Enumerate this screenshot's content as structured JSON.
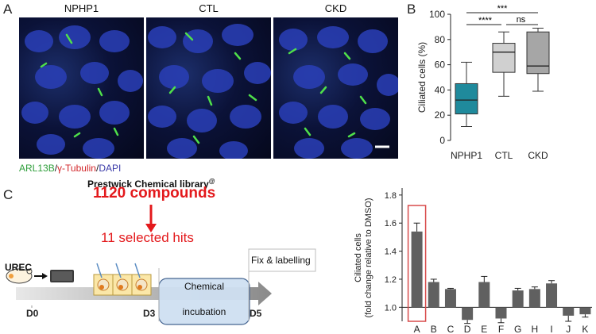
{
  "panelA": {
    "letter": "A",
    "images": [
      {
        "title": "NPHP1"
      },
      {
        "title": "CTL"
      },
      {
        "title": "CKD"
      }
    ],
    "stain": {
      "arl13b": "ARL13B",
      "sep1": "/",
      "tubulin": "γ-Tubulin",
      "sep2": "/",
      "dapi": "DAPI"
    }
  },
  "panelB": {
    "letter": "B",
    "significance": {
      "top": "***",
      "left": "****",
      "right": "ns"
    }
  },
  "panelC": {
    "letter": "C",
    "library": "Prestwick Chemical library",
    "library_mark": "@",
    "compounds": "1120 compounds",
    "hits": "11 selected hits",
    "urec": "UREC",
    "fix": "Fix & labelling",
    "chem1": "Chemical",
    "chem2": "incubation",
    "d0": "D0",
    "d3": "D3",
    "d5": "D5"
  },
  "colors": {
    "nphp1": "#1f8a9c",
    "ctl": "#d0d0d0",
    "ckd": "#a6a6a6",
    "bar": "#606060",
    "highlight": "#d84b4b",
    "red": "#e3191c"
  },
  "chart_data": [
    {
      "type": "box",
      "ylabel": "Ciliated cells (%)",
      "ylim": [
        0,
        100
      ],
      "yticks": [
        "0",
        "20",
        "40",
        "60",
        "80",
        "100"
      ],
      "categories": [
        "NPHP1",
        "CTL",
        "CKD"
      ],
      "boxes": [
        {
          "name": "NPHP1",
          "min": 11,
          "q1": 21,
          "median": 32,
          "q3": 45,
          "max": 62
        },
        {
          "name": "CTL",
          "min": 35,
          "q1": 54,
          "median": 70,
          "q3": 77,
          "max": 86
        },
        {
          "name": "CKD",
          "min": 39,
          "q1": 53,
          "median": 59,
          "q3": 86,
          "max": 89
        }
      ],
      "grid": false
    },
    {
      "type": "bar",
      "ylabel": "Ciliated cells\n(fold change relative to DMSO)",
      "ylim": [
        0.9,
        1.85
      ],
      "yticks": [
        "1.0",
        "1.2",
        "1.4",
        "1.6",
        "1.8"
      ],
      "categories": [
        "A",
        "B",
        "C",
        "D",
        "E",
        "F",
        "G",
        "H",
        "I",
        "J",
        "K"
      ],
      "values": [
        1.54,
        1.18,
        1.13,
        0.91,
        1.18,
        0.92,
        1.12,
        1.13,
        1.17,
        0.94,
        0.95
      ],
      "errors": [
        0.06,
        0.02,
        0.005,
        0.025,
        0.04,
        0.03,
        0.015,
        0.015,
        0.02,
        0.04,
        0.02
      ],
      "highlighted": "A",
      "grid": false
    }
  ]
}
